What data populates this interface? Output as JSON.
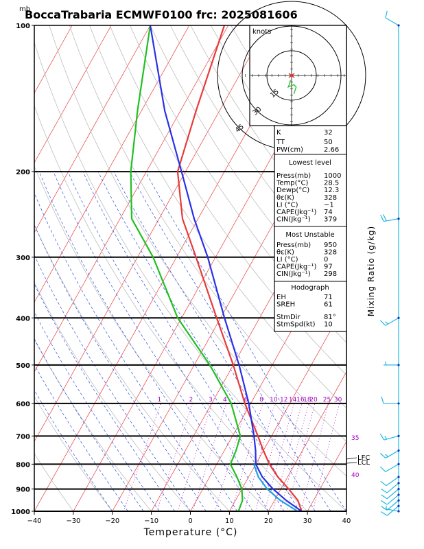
{
  "chart_data": {
    "type": "line",
    "title": "BoccaTrabaria ECMWF0100 frc: 2025081606",
    "pressure_unit": "mb",
    "xlabel": "Temperature (°C)",
    "right_label": "Mixing Ratio (g/kg)",
    "xlim": [
      -40,
      40
    ],
    "pressure_range": [
      1000,
      100
    ],
    "x_ticks": [
      "−40",
      "−30",
      "−20",
      "−10",
      "0",
      "10",
      "20",
      "30",
      "40"
    ],
    "x_tick_values": [
      -40,
      -30,
      -20,
      -10,
      0,
      10,
      20,
      30,
      40
    ],
    "pressure_ticks": [
      1000,
      900,
      800,
      700,
      600,
      500,
      400,
      300,
      200,
      100
    ],
    "bold_pressure_levels": [
      1000,
      900,
      800,
      700,
      600,
      500,
      400,
      300,
      200
    ],
    "mixing_ratio_labels": [
      "1",
      "2",
      "3",
      "4",
      "6",
      "8",
      "10",
      "12",
      "14",
      "16",
      "18",
      "20",
      "25",
      "30"
    ],
    "mixing_ratio_values": [
      1,
      2,
      3,
      4,
      6,
      8,
      10,
      12,
      14,
      16,
      18,
      20,
      25,
      30
    ],
    "theta_e_labels": [
      "35",
      "40"
    ],
    "lcl_labels": [
      "LFC",
      "LCL"
    ],
    "series": [
      {
        "name": "",
        "color": "#e83a3a",
        "points": [
          [
            1000,
            28.5
          ],
          [
            950,
            26
          ],
          [
            900,
            22
          ],
          [
            850,
            17.5
          ],
          [
            800,
            13.5
          ],
          [
            750,
            10
          ],
          [
            700,
            6.5
          ],
          [
            600,
            -1.5
          ],
          [
            500,
            -10
          ],
          [
            400,
            -21
          ],
          [
            300,
            -35
          ],
          [
            250,
            -44
          ],
          [
            200,
            -52
          ],
          [
            150,
            -56
          ],
          [
            100,
            -61
          ]
        ]
      },
      {
        "name": "",
        "color": "#20c020",
        "points": [
          [
            1000,
            12.3
          ],
          [
            950,
            11.8
          ],
          [
            900,
            10
          ],
          [
            850,
            7
          ],
          [
            800,
            3.5
          ],
          [
            750,
            3
          ],
          [
            700,
            2
          ],
          [
            600,
            -5
          ],
          [
            500,
            -16
          ],
          [
            400,
            -31
          ],
          [
            300,
            -46
          ],
          [
            250,
            -57
          ],
          [
            200,
            -64
          ],
          [
            150,
            -71
          ],
          [
            100,
            -80
          ]
        ]
      },
      {
        "name": "",
        "color": "#2830e8",
        "points": [
          [
            1000,
            28.5
          ],
          [
            950,
            23
          ],
          [
            900,
            18
          ],
          [
            850,
            13.5
          ],
          [
            800,
            10
          ],
          [
            750,
            8
          ],
          [
            700,
            5.5
          ],
          [
            600,
            -0.5
          ],
          [
            500,
            -8.5
          ],
          [
            400,
            -19
          ],
          [
            300,
            -32
          ],
          [
            250,
            -41
          ],
          [
            200,
            -51
          ],
          [
            150,
            -64
          ],
          [
            100,
            -80
          ]
        ]
      },
      {
        "name": "",
        "color": "#20a0e0",
        "points": [
          [
            1000,
            27.5
          ],
          [
            950,
            21.5
          ],
          [
            900,
            16.5
          ],
          [
            850,
            12.5
          ],
          [
            800,
            9.5
          ]
        ]
      }
    ],
    "wind_barbs": [
      {
        "p": 1000,
        "dir": 280,
        "kt": 5
      },
      {
        "p": 975,
        "dir": 230,
        "kt": 10
      },
      {
        "p": 950,
        "dir": 230,
        "kt": 10
      },
      {
        "p": 925,
        "dir": 230,
        "kt": 10
      },
      {
        "p": 900,
        "dir": 230,
        "kt": 10
      },
      {
        "p": 875,
        "dir": 230,
        "kt": 10
      },
      {
        "p": 850,
        "dir": 235,
        "kt": 10
      },
      {
        "p": 800,
        "dir": 240,
        "kt": 10
      },
      {
        "p": 750,
        "dir": 240,
        "kt": 15
      },
      {
        "p": 700,
        "dir": 255,
        "kt": 15
      },
      {
        "p": 600,
        "dir": 270,
        "kt": 10
      },
      {
        "p": 500,
        "dir": 270,
        "kt": 5
      },
      {
        "p": 400,
        "dir": 240,
        "kt": 15
      },
      {
        "p": 250,
        "dir": 260,
        "kt": 20
      },
      {
        "p": 100,
        "dir": 300,
        "kt": 10
      }
    ],
    "hodograph": {
      "unit_label": "knots",
      "ring_labels": [
        "15",
        "30",
        "45"
      ],
      "points": [
        [
          -1,
          4
        ],
        [
          -2,
          8
        ],
        [
          -3,
          10
        ],
        [
          2,
          8
        ],
        [
          4,
          10
        ],
        [
          3,
          13
        ],
        [
          2,
          16
        ]
      ]
    }
  },
  "indices": {
    "K": {
      "label": "K",
      "value": "32"
    },
    "TT": {
      "label": "TT",
      "value": "50"
    },
    "PW": {
      "label": "PW(cm)",
      "value": "2.66"
    }
  },
  "lowest_level": {
    "header": "Lowest level",
    "rows": [
      {
        "label": "Press(mb)",
        "value": "1000"
      },
      {
        "label": "Temp(°C)",
        "value": "28.5"
      },
      {
        "label": "Dewp(°C)",
        "value": "12.3"
      },
      {
        "label": "θε(K)",
        "value": "328"
      },
      {
        "label": "LI (°C)",
        "value": "−1"
      },
      {
        "label": "CAPE(Jkg⁻¹)",
        "value": "74"
      },
      {
        "label": "CIN(Jkg⁻¹)",
        "value": "379"
      }
    ]
  },
  "most_unstable": {
    "header": "Most Unstable",
    "rows": [
      {
        "label": "Press(mb)",
        "value": "950"
      },
      {
        "label": "θε(K)",
        "value": "328"
      },
      {
        "label": "LI (°C)",
        "value": "0"
      },
      {
        "label": "CAPE(Jkg⁻¹)",
        "value": "97"
      },
      {
        "label": "CIN(Jkg⁻¹)",
        "value": "298"
      }
    ]
  },
  "hodograph_box": {
    "header": "Hodograph",
    "rows": [
      {
        "label": "EH",
        "value": "71"
      },
      {
        "label": "SREH",
        "value": "61"
      },
      {
        "label": "StmDir",
        "value": "81°"
      },
      {
        "label": "StmSpd(kt)",
        "value": "10"
      }
    ]
  },
  "colors": {
    "isotherm": "#e83a3a",
    "dry_adiabat": "#b4b4b4",
    "moist_adiabat": "#3050e0",
    "mixing_ratio": "#a000c0",
    "wind": "#20b8e0"
  }
}
